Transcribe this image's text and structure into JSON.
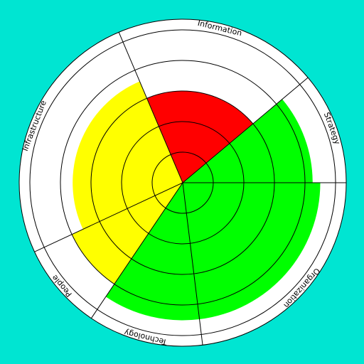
{
  "chart_data": {
    "type": "polar-area",
    "categories": [
      "Information",
      "Strategy",
      "Organization",
      "Technology",
      "People",
      "Infrastructure"
    ],
    "values": [
      3,
      4.25,
      4.5,
      4.5,
      4,
      3.6
    ],
    "colors": [
      "#ff0000",
      "#00ff00",
      "#00ff00",
      "#00ff00",
      "#ffff00",
      "#ffff00"
    ],
    "sector_degrees": [
      73,
      40,
      83,
      41,
      31,
      92
    ],
    "start_angle": -23,
    "rlim": [
      0,
      5
    ],
    "rticks": [
      1,
      2,
      3,
      4,
      5
    ],
    "grid": true
  }
}
